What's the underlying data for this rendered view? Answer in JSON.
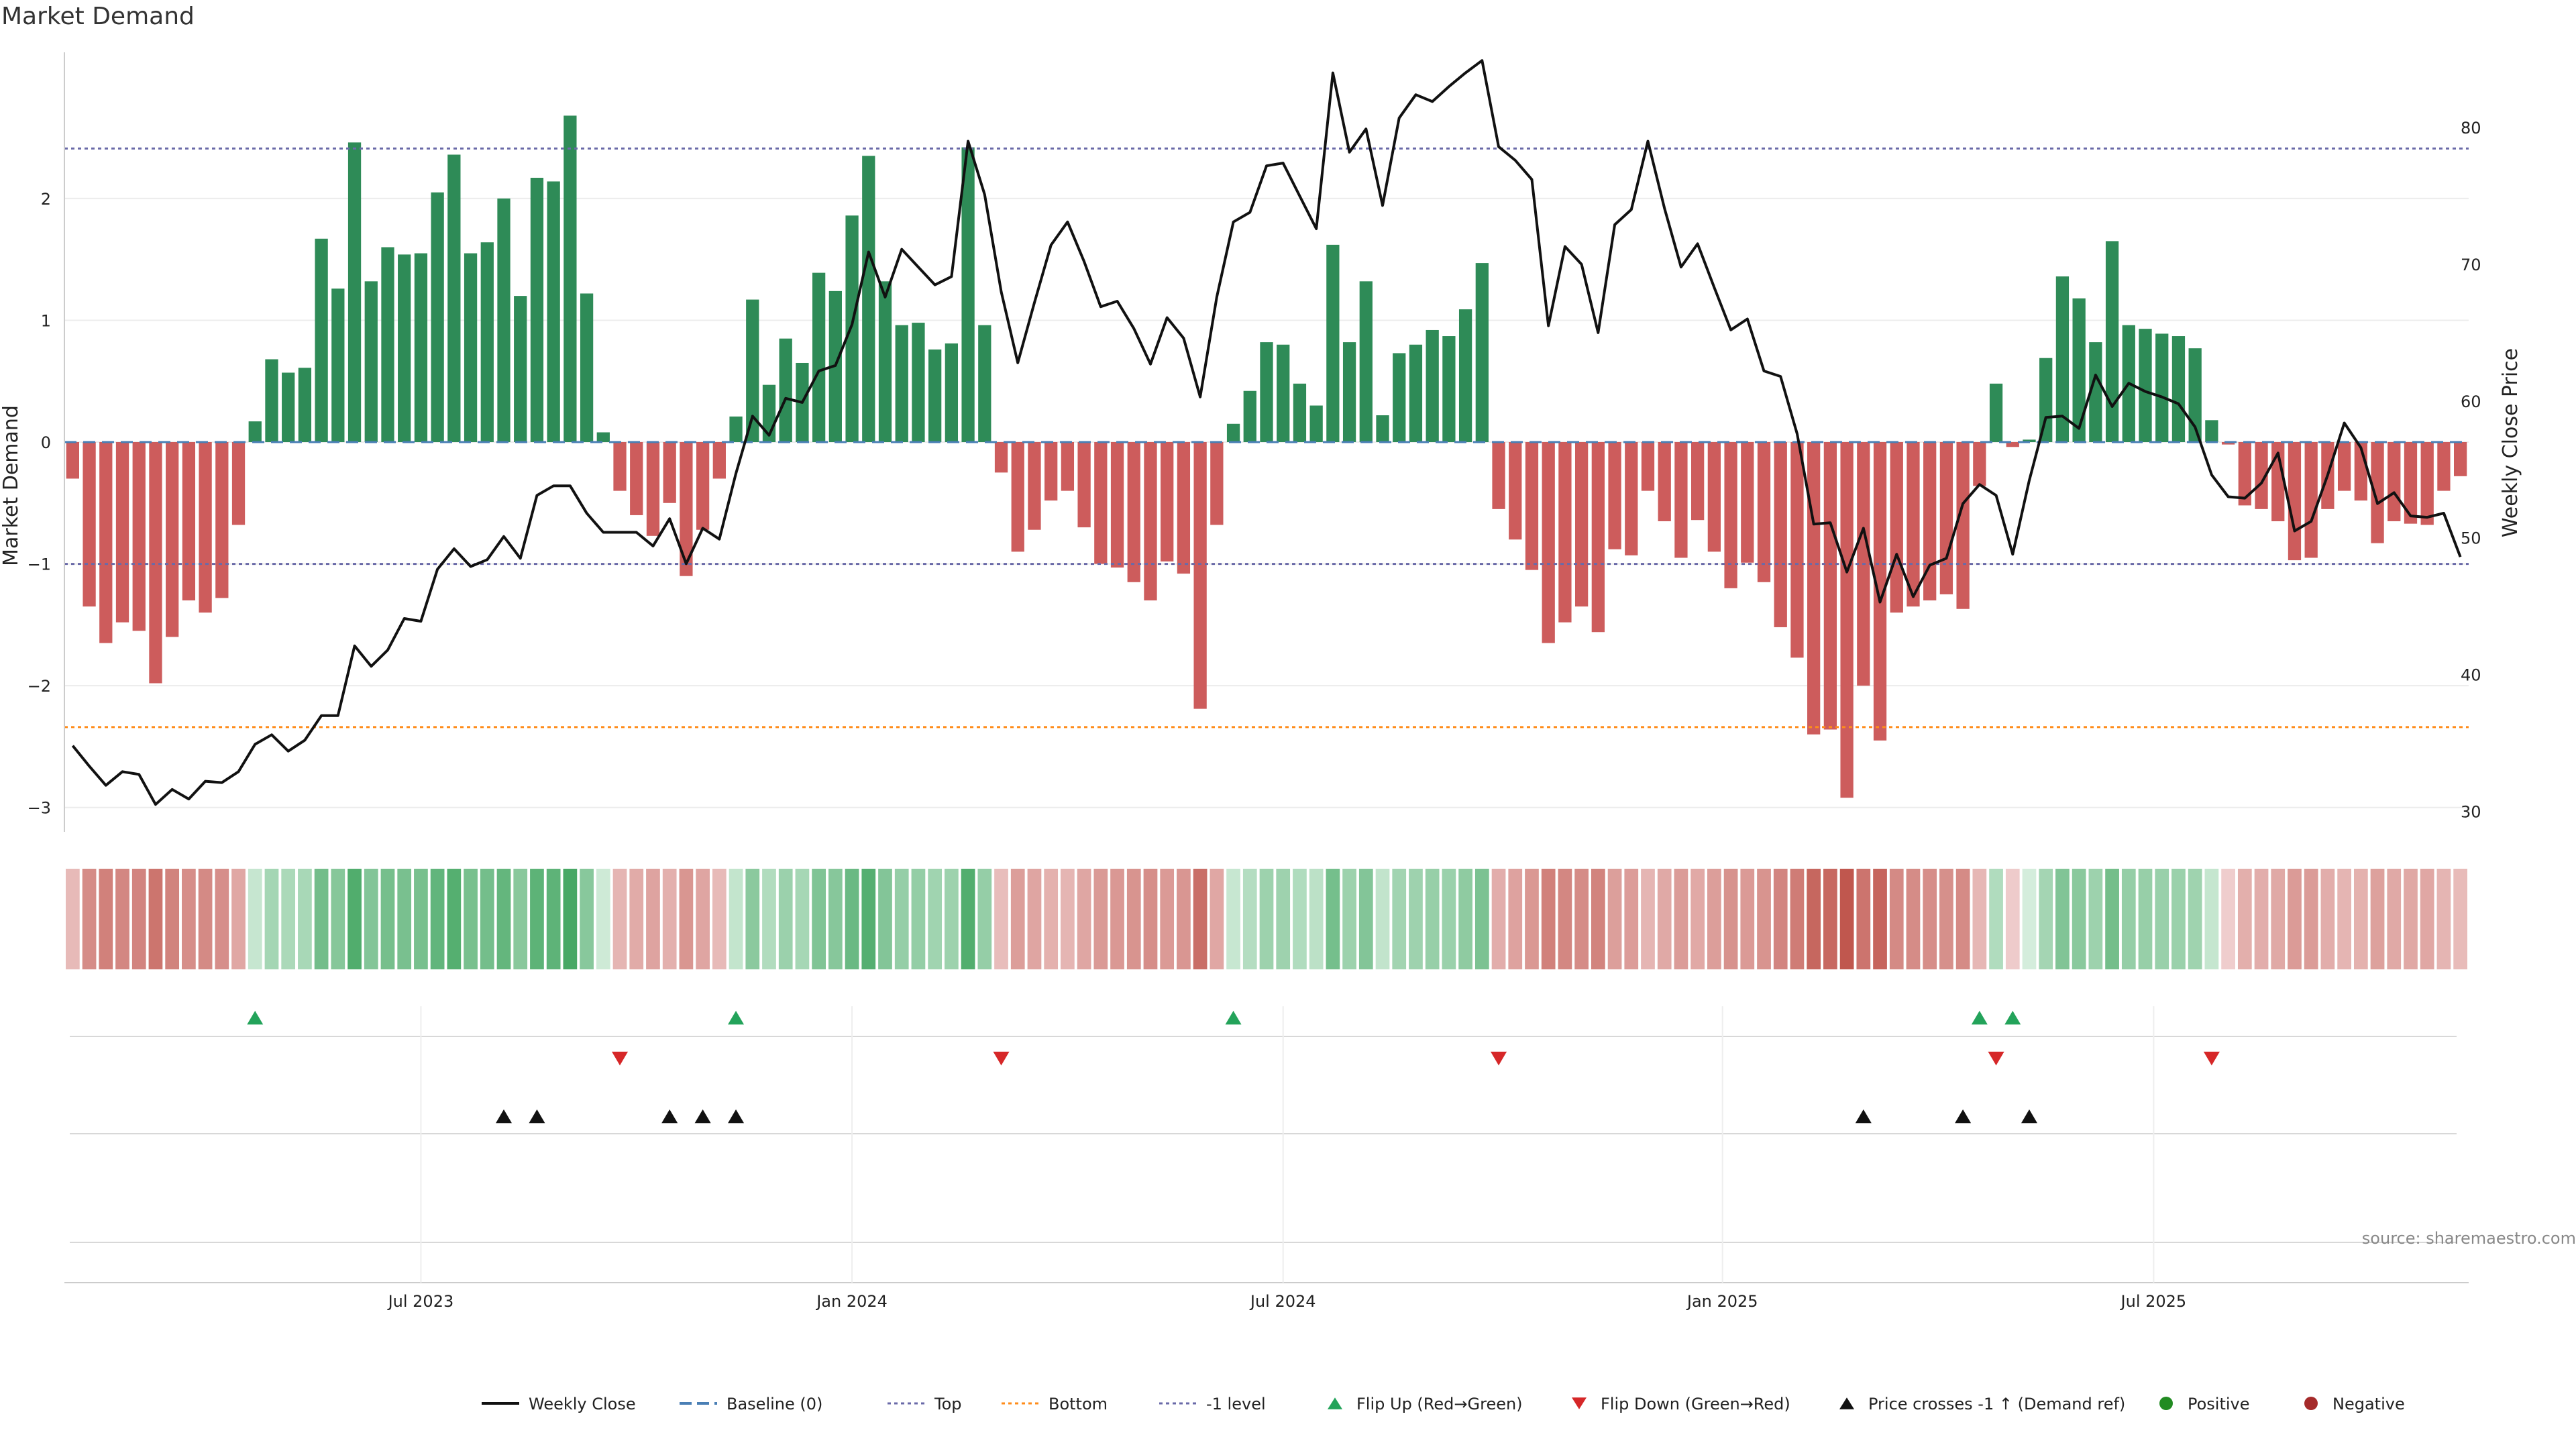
{
  "title": "Market Demand",
  "source": "source: sharemaestro.com",
  "colors": {
    "positive": "#2e8b57",
    "negative": "#cd5c5c",
    "line": "#111111",
    "top": "#6a6aa8",
    "bottom": "#ff8c1a",
    "minus1": "#6a6aa8",
    "baseline": "#4a7fb5",
    "flip_up": "#23a35a",
    "flip_down": "#d62728",
    "cross": "#111111"
  },
  "legend": [
    {
      "label": "Weekly Close",
      "kind": "line"
    },
    {
      "label": "Baseline (0)",
      "kind": "dash"
    },
    {
      "label": "Top",
      "kind": "dotted"
    },
    {
      "label": "Bottom",
      "kind": "dotted-orange"
    },
    {
      "label": "-1 level",
      "kind": "dotted"
    },
    {
      "label": "Flip Up (Red→Green)",
      "kind": "tri-up-green"
    },
    {
      "label": "Flip Down (Green→Red)",
      "kind": "tri-down-red"
    },
    {
      "label": "Price crosses -1 ↑ (Demand ref)",
      "kind": "tri-up-black"
    },
    {
      "label": "Positive",
      "kind": "dot-green"
    },
    {
      "label": "Negative",
      "kind": "dot-red"
    }
  ],
  "chart_data": {
    "type": "bar",
    "title": "Market Demand",
    "ylabel": "Market Demand",
    "y2label": "Weekly Close Price",
    "ylim": [
      -3.2,
      3.2
    ],
    "y2lim": [
      28.5,
      85.5
    ],
    "yticks": [
      -3,
      -2,
      -1,
      0,
      1,
      2
    ],
    "yticklabels": [
      "−3",
      "−2",
      "−1",
      "0",
      "1",
      "2"
    ],
    "y2ticks": [
      30,
      40,
      50,
      60,
      70,
      80
    ],
    "y2ticklabels": [
      "30",
      "40",
      "50",
      "60",
      "70",
      "80"
    ],
    "xticks": [
      {
        "week": 21,
        "label": "Jul 2023"
      },
      {
        "week": 47,
        "label": "Jan 2024"
      },
      {
        "week": 73,
        "label": "Jul 2024"
      },
      {
        "week": 99.5,
        "label": "Jan 2025"
      },
      {
        "week": 125.5,
        "label": "Jul 2025"
      }
    ],
    "top_level": 2.41,
    "bottom_level": -2.34,
    "minus1_level": -1.0,
    "demand": [
      -0.3,
      -1.35,
      -1.65,
      -1.48,
      -1.55,
      -1.98,
      -1.6,
      -1.3,
      -1.4,
      -1.28,
      -0.68,
      0.17,
      0.68,
      0.57,
      0.61,
      1.67,
      1.26,
      2.46,
      1.32,
      1.6,
      1.54,
      1.55,
      2.05,
      2.36,
      1.55,
      1.64,
      2.0,
      1.2,
      2.17,
      2.14,
      2.68,
      1.22,
      0.08,
      -0.4,
      -0.6,
      -0.77,
      -0.5,
      -1.1,
      -0.72,
      -0.3,
      0.21,
      1.17,
      0.47,
      0.85,
      0.65,
      1.39,
      1.24,
      1.86,
      2.35,
      1.32,
      0.96,
      0.98,
      0.76,
      0.81,
      2.42,
      0.96,
      -0.25,
      -0.9,
      -0.72,
      -0.48,
      -0.4,
      -0.7,
      -1.0,
      -1.03,
      -1.15,
      -1.3,
      -0.98,
      -1.08,
      -2.19,
      -0.68,
      0.15,
      0.42,
      0.82,
      0.8,
      0.48,
      0.3,
      1.62,
      0.82,
      1.32,
      0.22,
      0.73,
      0.8,
      0.92,
      0.87,
      1.09,
      1.47,
      -0.55,
      -0.8,
      -1.05,
      -1.65,
      -1.48,
      -1.35,
      -1.56,
      -0.88,
      -0.93,
      -0.4,
      -0.65,
      -0.95,
      -0.64,
      -0.9,
      -1.2,
      -0.99,
      -1.15,
      -1.52,
      -1.77,
      -2.4,
      -2.36,
      -2.92,
      -2.0,
      -2.45,
      -1.4,
      -1.35,
      -1.3,
      -1.25,
      -1.37,
      -0.36,
      0.48,
      -0.04,
      0.02,
      0.69,
      1.36,
      1.18,
      0.82,
      1.65,
      0.96,
      0.93,
      0.89,
      0.87,
      0.77,
      0.18,
      -0.02,
      -0.52,
      -0.55,
      -0.65,
      -0.97,
      -0.95,
      -0.55,
      -0.4,
      -0.48,
      -0.83,
      -0.65,
      -0.67,
      -0.68,
      -0.4,
      -0.28
    ],
    "price": [
      34.8,
      33.3,
      31.9,
      32.9,
      32.7,
      30.5,
      31.6,
      30.9,
      32.2,
      32.1,
      32.9,
      34.9,
      35.6,
      34.4,
      35.2,
      37.0,
      37.0,
      42.1,
      40.6,
      41.8,
      44.1,
      43.9,
      47.7,
      49.2,
      47.9,
      48.4,
      50.1,
      48.5,
      53.1,
      53.8,
      53.8,
      51.8,
      50.4,
      50.4,
      50.4,
      49.4,
      51.4,
      48.1,
      50.7,
      49.9,
      54.7,
      58.9,
      57.5,
      60.2,
      59.9,
      62.2,
      62.6,
      65.6,
      70.9,
      67.6,
      71.1,
      69.8,
      68.5,
      69.1,
      79.0,
      75.1,
      68.0,
      62.8,
      67.2,
      71.4,
      73.1,
      70.2,
      66.9,
      67.3,
      65.3,
      62.7,
      66.1,
      64.6,
      60.3,
      67.6,
      73.1,
      73.8,
      77.2,
      77.4,
      75.0,
      72.6,
      84.0,
      78.2,
      79.9,
      74.3,
      80.7,
      82.4,
      81.9,
      83.0,
      84.0,
      84.9,
      78.6,
      77.6,
      76.2,
      65.5,
      71.3,
      70.0,
      65.0,
      72.9,
      74.0,
      79.0,
      74.1,
      69.8,
      71.5,
      68.3,
      65.2,
      66.0,
      62.2,
      61.8,
      57.6,
      51.0,
      51.1,
      47.5,
      50.7,
      45.3,
      48.8,
      45.7,
      48.0,
      48.5,
      52.5,
      53.9,
      53.1,
      48.8,
      54.2,
      58.8,
      58.9,
      58.0,
      61.9,
      59.6,
      61.3,
      60.7,
      60.3,
      59.8,
      58.1,
      54.6,
      53.0,
      52.9,
      54.0,
      56.2,
      50.5,
      51.2,
      54.6,
      58.4,
      56.6,
      52.5,
      53.3,
      51.6,
      51.5,
      51.8,
      48.6
    ],
    "flip_up_weeks": [
      11,
      40,
      70,
      115,
      117
    ],
    "flip_down_weeks": [
      33,
      56,
      86,
      116,
      129
    ],
    "price_cross_weeks": [
      26,
      28,
      36,
      38,
      40,
      108,
      114,
      118
    ]
  }
}
